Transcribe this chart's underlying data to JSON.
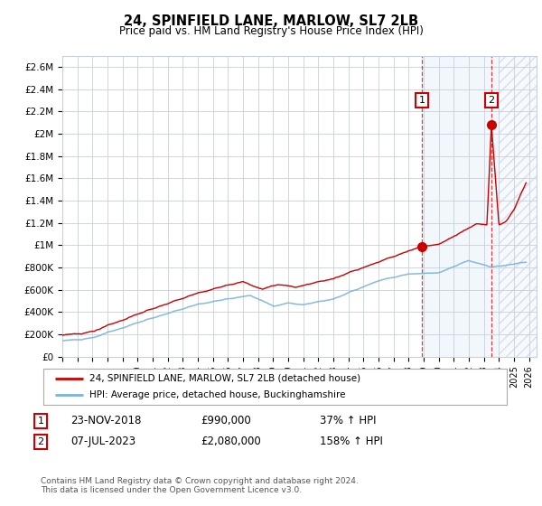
{
  "title": "24, SPINFIELD LANE, MARLOW, SL7 2LB",
  "subtitle": "Price paid vs. HM Land Registry's House Price Index (HPI)",
  "ylim": [
    0,
    2700000
  ],
  "xlim_start": 1995.0,
  "xlim_end": 2026.5,
  "ytick_labels": [
    "£0",
    "£200K",
    "£400K",
    "£600K",
    "£800K",
    "£1M",
    "£1.2M",
    "£1.4M",
    "£1.6M",
    "£1.8M",
    "£2M",
    "£2.2M",
    "£2.4M",
    "£2.6M"
  ],
  "ytick_values": [
    0,
    200000,
    400000,
    600000,
    800000,
    1000000,
    1200000,
    1400000,
    1600000,
    1800000,
    2000000,
    2200000,
    2400000,
    2600000
  ],
  "xtick_years": [
    1995,
    1996,
    1997,
    1998,
    1999,
    2000,
    2001,
    2002,
    2003,
    2004,
    2005,
    2006,
    2007,
    2008,
    2009,
    2010,
    2011,
    2012,
    2013,
    2014,
    2015,
    2016,
    2017,
    2018,
    2019,
    2020,
    2021,
    2022,
    2023,
    2024,
    2025,
    2026
  ],
  "hpi_color": "#7ab3d8",
  "price_color": "#cc0000",
  "grid_color": "#c8d0dc",
  "sale1_x": 2018.9,
  "sale1_y": 990000,
  "sale1_label": "1",
  "sale2_x": 2023.5,
  "sale2_y": 2080000,
  "sale2_label": "2",
  "legend_line1": "24, SPINFIELD LANE, MARLOW, SL7 2LB (detached house)",
  "legend_line2": "HPI: Average price, detached house, Buckinghamshire",
  "table_row1_num": "1",
  "table_row1_date": "23-NOV-2018",
  "table_row1_price": "£990,000",
  "table_row1_hpi": "37% ↑ HPI",
  "table_row2_num": "2",
  "table_row2_date": "07-JUL-2023",
  "table_row2_price": "£2,080,000",
  "table_row2_hpi": "158% ↑ HPI",
  "footer": "Contains HM Land Registry data © Crown copyright and database right 2024.\nThis data is licensed under the Open Government Licence v3.0.",
  "shade_region_start": 2018.9,
  "hatch_region_start": 2024.0,
  "xlim_end_data": 2026.5
}
